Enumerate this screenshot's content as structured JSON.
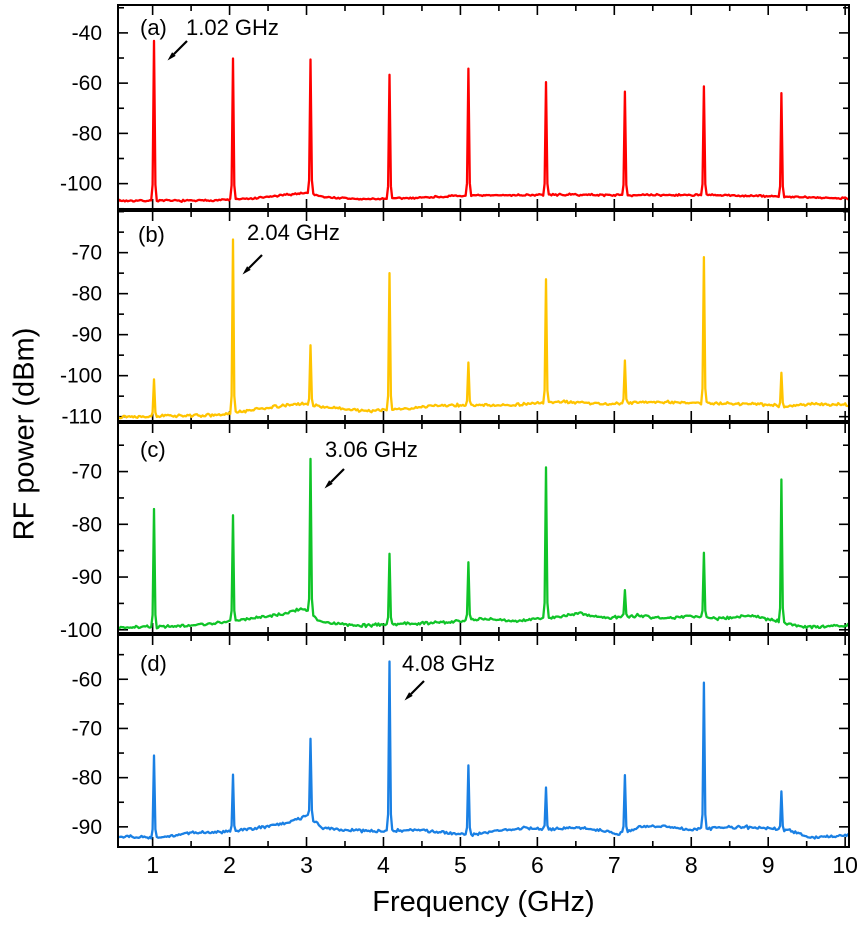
{
  "chart_data": {
    "type": "line",
    "description": "Stacked RF spectra of harmonically mode-locked signals, four panels sharing a frequency axis",
    "xlabel": "Frequency (GHz)",
    "ylabel": "RF power (dBm)",
    "x_range": [
      0.55,
      10.05
    ],
    "xticks": [
      1,
      2,
      3,
      4,
      5,
      6,
      7,
      8,
      9,
      10
    ],
    "xtick_minor_step": 0.5,
    "axis_color": "#000000",
    "background": "#ffffff",
    "panels": [
      {
        "id": "a",
        "label": "(a)",
        "annotation": "1.02 GHz",
        "fundamental_ghz": 1.02,
        "color": "#ff0000",
        "ylim": [
          -110.5,
          -28.5
        ],
        "yticks": [
          -40,
          -60,
          -80,
          -100
        ],
        "ytick_minor_step": 10,
        "peaks": {
          "x": [
            1.02,
            2.04,
            3.06,
            4.08,
            5.1,
            6.12,
            7.14,
            8.16,
            9.18
          ],
          "y": [
            -43.2,
            -50.2,
            -50.6,
            -56.7,
            -54.2,
            -59.6,
            -63.4,
            -61.3,
            -64.0
          ]
        },
        "baseline": [
          [
            0.55,
            -106.8
          ],
          [
            1.6,
            -106.8
          ],
          [
            2.3,
            -106.0
          ],
          [
            2.7,
            -104.6
          ],
          [
            3.0,
            -103.6
          ],
          [
            3.25,
            -105.4
          ],
          [
            3.7,
            -106.2
          ],
          [
            4.3,
            -105.8
          ],
          [
            4.9,
            -105.0
          ],
          [
            5.6,
            -104.6
          ],
          [
            6.4,
            -104.4
          ],
          [
            7.2,
            -104.6
          ],
          [
            8.1,
            -104.5
          ],
          [
            9.0,
            -105.0
          ],
          [
            9.6,
            -105.6
          ],
          [
            10.05,
            -105.8
          ]
        ],
        "noise_amp": 0.45,
        "seed": 7
      },
      {
        "id": "b",
        "label": "(b)",
        "annotation": "2.04 GHz",
        "fundamental_ghz": 2.04,
        "color": "#ffc400",
        "ylim": [
          -111.3,
          -59.6
        ],
        "yticks": [
          -70,
          -80,
          -90,
          -100,
          -110
        ],
        "ytick_minor_step": 5,
        "peaks": {
          "x": [
            1.02,
            2.04,
            3.06,
            4.08,
            5.1,
            6.12,
            7.14,
            8.16,
            9.18
          ],
          "y": [
            -100.9,
            -66.8,
            -92.6,
            -75.0,
            -96.8,
            -76.5,
            -96.3,
            -71.1,
            -99.3
          ]
        },
        "baseline": [
          [
            0.55,
            -110.0
          ],
          [
            1.9,
            -109.6
          ],
          [
            2.4,
            -108.0
          ],
          [
            2.95,
            -106.8
          ],
          [
            3.3,
            -107.8
          ],
          [
            3.8,
            -108.6
          ],
          [
            4.4,
            -107.9
          ],
          [
            4.7,
            -107.2
          ],
          [
            5.6,
            -107.2
          ],
          [
            6.3,
            -106.4
          ],
          [
            6.9,
            -106.9
          ],
          [
            7.5,
            -106.4
          ],
          [
            8.2,
            -106.7
          ],
          [
            8.8,
            -106.9
          ],
          [
            9.2,
            -107.4
          ],
          [
            9.6,
            -106.9
          ],
          [
            10.05,
            -107.1
          ]
        ],
        "noise_amp": 0.4,
        "seed": 13
      },
      {
        "id": "c",
        "label": "(c)",
        "annotation": "3.06 GHz",
        "fundamental_ghz": 3.06,
        "color": "#10c428",
        "ylim": [
          -100.8,
          -60.6
        ],
        "yticks": [
          -70,
          -80,
          -90,
          -100
        ],
        "ytick_minor_step": 5,
        "peaks": {
          "x": [
            1.02,
            2.04,
            3.06,
            4.08,
            5.1,
            6.12,
            7.14,
            8.16,
            9.18
          ],
          "y": [
            -77.1,
            -78.3,
            -67.6,
            -85.6,
            -87.2,
            -69.2,
            -92.5,
            -85.4,
            -71.5
          ]
        },
        "baseline": [
          [
            0.55,
            -99.6
          ],
          [
            1.5,
            -99.2
          ],
          [
            2.1,
            -98.3
          ],
          [
            2.6,
            -97.2
          ],
          [
            2.95,
            -96.0
          ],
          [
            3.2,
            -98.5
          ],
          [
            3.7,
            -99.2
          ],
          [
            4.2,
            -98.9
          ],
          [
            4.8,
            -98.6
          ],
          [
            5.3,
            -97.9
          ],
          [
            5.75,
            -98.4
          ],
          [
            6.2,
            -97.6
          ],
          [
            6.55,
            -96.9
          ],
          [
            6.9,
            -97.8
          ],
          [
            7.3,
            -97.3
          ],
          [
            7.65,
            -97.9
          ],
          [
            8.0,
            -97.4
          ],
          [
            8.4,
            -97.9
          ],
          [
            8.75,
            -97.3
          ],
          [
            9.1,
            -98.3
          ],
          [
            9.45,
            -99.5
          ],
          [
            10.05,
            -99.2
          ]
        ],
        "noise_amp": 0.35,
        "seed": 21
      },
      {
        "id": "d",
        "label": "(d)",
        "annotation": "4.08 GHz",
        "fundamental_ghz": 4.08,
        "color": "#1a80e4",
        "ylim": [
          -94.3,
          -50.8
        ],
        "yticks": [
          -60,
          -70,
          -80,
          -90
        ],
        "ytick_minor_step": 5,
        "peaks": {
          "x": [
            1.02,
            2.04,
            3.06,
            4.08,
            5.1,
            6.12,
            7.14,
            8.16,
            9.18
          ],
          "y": [
            -75.5,
            -79.4,
            -72.1,
            -56.4,
            -77.5,
            -82.0,
            -79.5,
            -60.7,
            -82.8
          ]
        },
        "baseline": [
          [
            0.55,
            -91.9
          ],
          [
            1.1,
            -92.2
          ],
          [
            1.5,
            -91.2
          ],
          [
            2.0,
            -91.0
          ],
          [
            2.3,
            -90.4
          ],
          [
            2.7,
            -89.3
          ],
          [
            3.02,
            -87.7
          ],
          [
            3.2,
            -90.2
          ],
          [
            3.6,
            -90.7
          ],
          [
            4.0,
            -91.0
          ],
          [
            4.35,
            -90.5
          ],
          [
            4.8,
            -91.2
          ],
          [
            5.15,
            -91.6
          ],
          [
            5.5,
            -90.7
          ],
          [
            5.85,
            -90.2
          ],
          [
            6.15,
            -90.6
          ],
          [
            6.5,
            -90.1
          ],
          [
            6.85,
            -90.8
          ],
          [
            7.05,
            -91.5
          ],
          [
            7.35,
            -90.0
          ],
          [
            7.7,
            -89.9
          ],
          [
            8.0,
            -90.7
          ],
          [
            8.3,
            -90.2
          ],
          [
            8.65,
            -90.0
          ],
          [
            9.0,
            -90.3
          ],
          [
            9.3,
            -90.8
          ],
          [
            9.55,
            -92.3
          ],
          [
            9.8,
            -92.0
          ],
          [
            10.05,
            -91.7
          ]
        ],
        "noise_amp": 0.35,
        "seed": 29
      }
    ]
  }
}
